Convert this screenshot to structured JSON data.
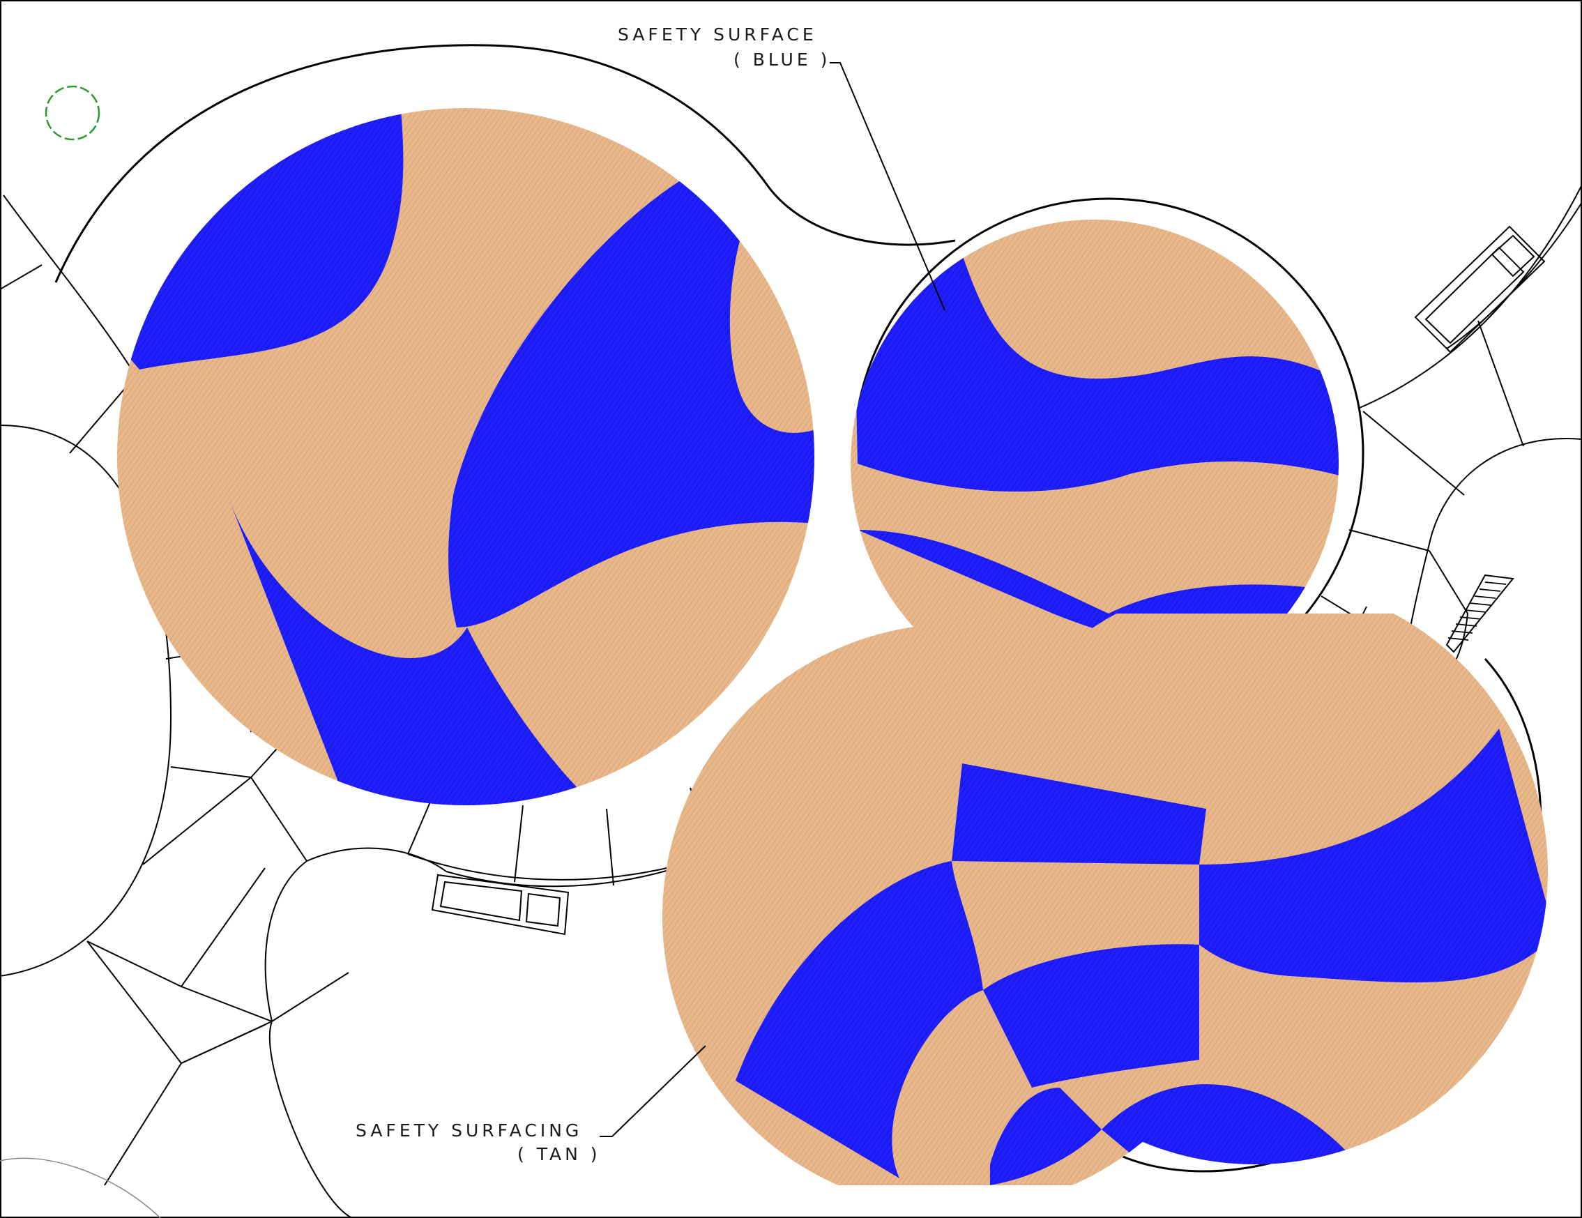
{
  "drawing": {
    "callouts": [
      {
        "id": "blue",
        "title": "SAFETY SURFACE",
        "subtitle": "( BLUE )"
      },
      {
        "id": "tan",
        "title": "SAFETY SURFACING",
        "subtitle": "( TAN )"
      }
    ],
    "colors": {
      "blue_surface": "#1f1fff",
      "tan_surface": "#e8b88a",
      "line": "#000000",
      "tree": "#2a9a2a",
      "background": "#ffffff"
    },
    "icons": [
      "tree-symbol-icon",
      "bench-icon",
      "stair-steps-icon"
    ]
  }
}
